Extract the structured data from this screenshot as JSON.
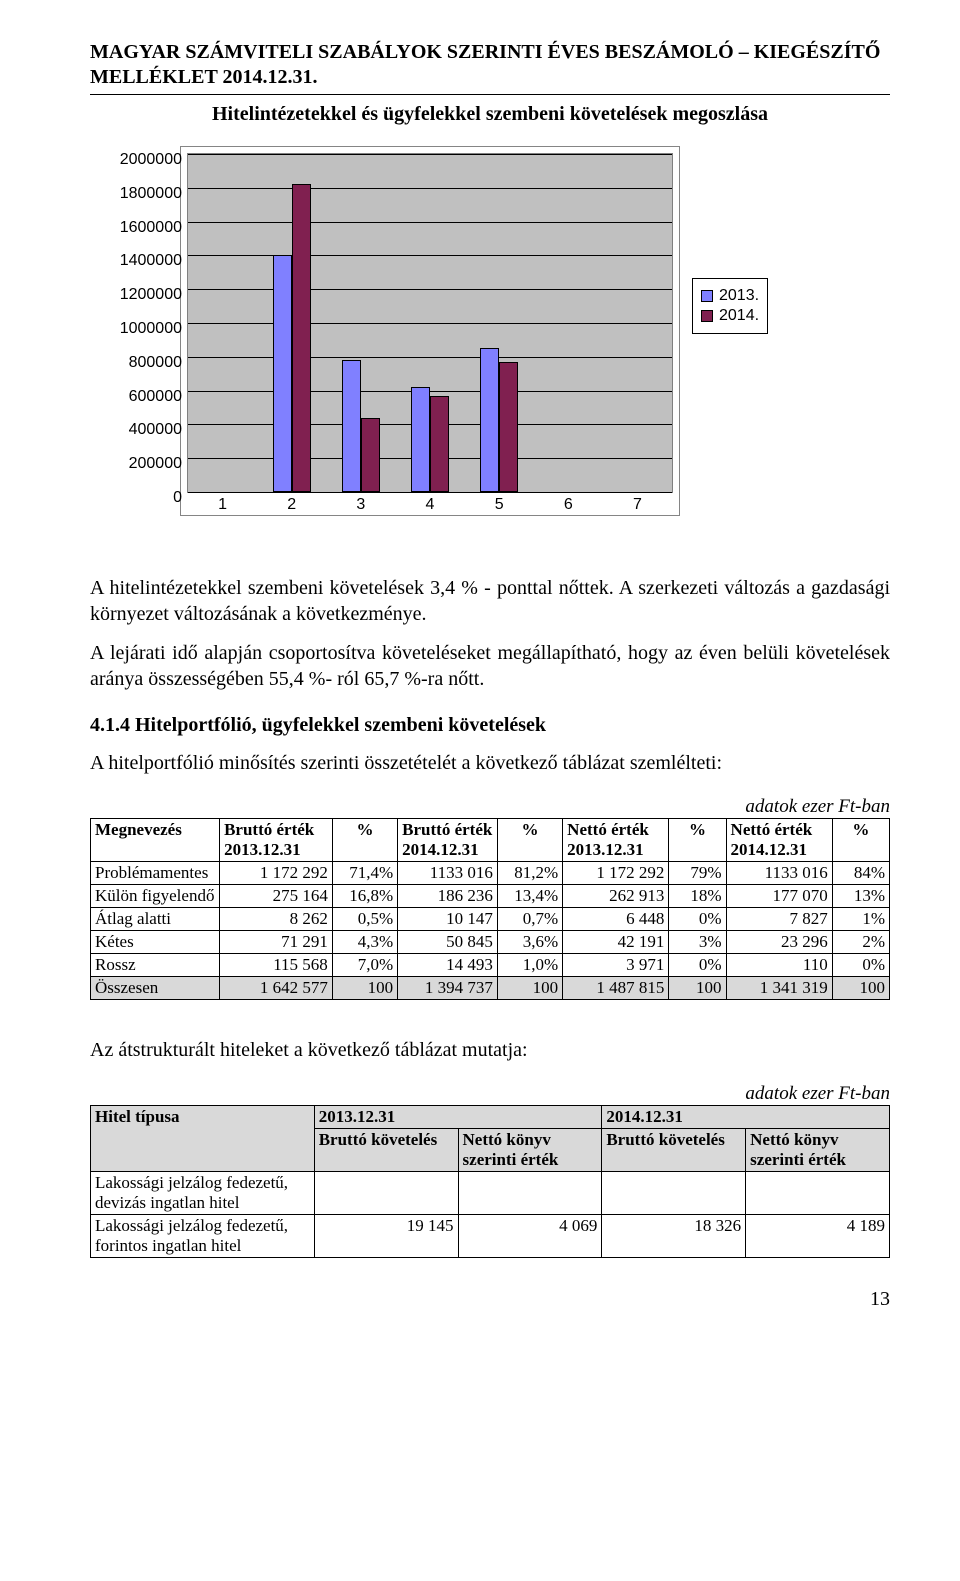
{
  "header": {
    "title": "MAGYAR SZÁMVITELI SZABÁLYOK SZERINTI ÉVES BESZÁMOLÓ – KIEGÉSZÍTŐ MELLÉKLET 2014.12.31."
  },
  "chart": {
    "type": "bar",
    "title": "Hitelintézetekkel és ügyfelekkel szembeni követelések megoszlása",
    "background_color": "#ffffff",
    "plot_background": "#c0c0c0",
    "grid_color": "#000000",
    "ylim": [
      0,
      2000000
    ],
    "ytick_step": 200000,
    "y_ticks": [
      0,
      200000,
      400000,
      600000,
      800000,
      1000000,
      1200000,
      1400000,
      1600000,
      1800000,
      2000000
    ],
    "categories": [
      "1",
      "2",
      "3",
      "4",
      "5",
      "6",
      "7"
    ],
    "series": [
      {
        "name": "2013.",
        "color": "#8080ff",
        "values": [
          0,
          1400000,
          780000,
          620000,
          850000,
          0,
          0
        ]
      },
      {
        "name": "2014.",
        "color": "#802050",
        "values": [
          0,
          1820000,
          440000,
          570000,
          770000,
          0,
          0
        ]
      }
    ],
    "bar_group_width_ratio": 0.55,
    "axis_fontsize": 16,
    "legend_position": "right"
  },
  "paragraphs": {
    "p1": "A hitelintézetekkel szembeni követelések 3,4 % - ponttal nőttek. A szerkezeti változás a gazdasági környezet változásának a következménye.",
    "p2": "A lejárati idő alapján csoportosítva követeléseket megállapítható, hogy az éven belüli követelések aránya összességében 55,4 %- ról 65,7 %-ra nőtt."
  },
  "section414": {
    "heading": "4.1.4 Hitelportfólió, ügyfelekkel szembeni követelések",
    "intro": "A hitelportfólió minősítés szerinti összetételét a következő táblázat szemlélteti:",
    "unit": "adatok  ezer Ft-ban",
    "columns": [
      "Megnevezés",
      "Bruttó érték 2013.12.31",
      "%",
      "Bruttó érték 2014.12.31",
      "%",
      "Nettó érték 2013.12.31",
      "%",
      "Nettó érték 2014.12.31",
      "%"
    ],
    "rows": [
      [
        "Problémamentes",
        "1 172 292",
        "71,4%",
        "1133 016",
        "81,2%",
        "1 172 292",
        "79%",
        "1133 016",
        "84%"
      ],
      [
        "Külön figyelendő",
        "275 164",
        "16,8%",
        "186 236",
        "13,4%",
        "262 913",
        "18%",
        "177 070",
        "13%"
      ],
      [
        "Átlag alatti",
        "8 262",
        "0,5%",
        "10 147",
        "0,7%",
        "6 448",
        "0%",
        "7 827",
        "1%"
      ],
      [
        "Kétes",
        "71 291",
        "4,3%",
        "50 845",
        "3,6%",
        "42 191",
        "3%",
        "23 296",
        "2%"
      ],
      [
        "Rossz",
        "115 568",
        "7,0%",
        "14 493",
        "1,0%",
        "3 971",
        "0%",
        "110",
        "0%"
      ]
    ],
    "summary": [
      "Összesen",
      "1 642 577",
      "100",
      "1 394 737",
      "100",
      "1 487 815",
      "100",
      "1 341 319",
      "100"
    ]
  },
  "restructured": {
    "intro": "Az átstrukturált hiteleket a következő táblázat mutatja:",
    "unit": "adatok  ezer Ft-ban",
    "top_headers": [
      "Hitel típusa",
      "2013.12.31",
      "2014.12.31"
    ],
    "sub_headers": [
      "Bruttó követelés",
      "Nettó könyv szerinti érték",
      "Bruttó követelés",
      "Nettó könyv szerinti érték"
    ],
    "rows": [
      [
        "Lakossági jelzálog fedezetű, devizás ingatlan hitel",
        "",
        "",
        "",
        ""
      ],
      [
        "Lakossági jelzálog fedezetű, forintos ingatlan hitel",
        "19 145",
        "4 069",
        "18 326",
        "4 189"
      ]
    ]
  },
  "page_number": "13"
}
